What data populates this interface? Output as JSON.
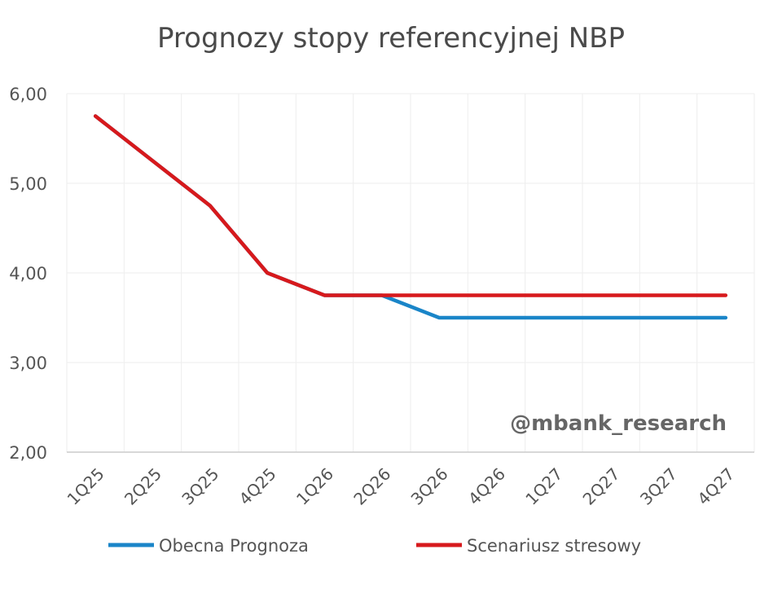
{
  "chart_data": {
    "type": "line",
    "title": "Prognozy stopy referencyjnej NBP",
    "categories": [
      "1Q25",
      "2Q25",
      "3Q25",
      "4Q25",
      "1Q26",
      "2Q26",
      "3Q26",
      "4Q26",
      "1Q27",
      "2Q27",
      "3Q27",
      "4Q27"
    ],
    "ylim": [
      2.0,
      6.0
    ],
    "yticks": [
      "6,00",
      "5,00",
      "4,00",
      "3,00",
      "2,00"
    ],
    "ytick_values": [
      6.0,
      5.0,
      4.0,
      3.0,
      2.0
    ],
    "grid": true,
    "legend_position": "bottom",
    "series": [
      {
        "name": "Obecna Prognoza",
        "color": "#1a85c8",
        "values": [
          5.75,
          5.25,
          4.75,
          4.0,
          3.75,
          3.75,
          3.5,
          3.5,
          3.5,
          3.5,
          3.5,
          3.5
        ]
      },
      {
        "name": "Scenariusz stresowy",
        "color": "#d7191c",
        "values": [
          5.75,
          5.25,
          4.75,
          4.0,
          3.75,
          3.75,
          3.75,
          3.75,
          3.75,
          3.75,
          3.75,
          3.75
        ]
      }
    ],
    "annotation": "@mbank_research"
  }
}
